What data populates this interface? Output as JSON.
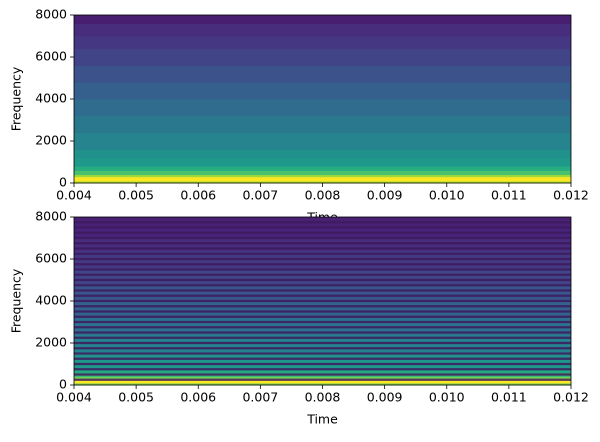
{
  "chart_data": [
    {
      "type": "spectrogram",
      "xlabel": "Time",
      "ylabel": "Frequency",
      "xlim": [
        0.004,
        0.012
      ],
      "xticks": [
        {
          "value": 0.004,
          "label": "0.004"
        },
        {
          "value": 0.005,
          "label": "0.005"
        },
        {
          "value": 0.006,
          "label": "0.006"
        },
        {
          "value": 0.007,
          "label": "0.007"
        },
        {
          "value": 0.008,
          "label": "0.008"
        },
        {
          "value": 0.009,
          "label": "0.009"
        },
        {
          "value": 0.01,
          "label": "0.010"
        },
        {
          "value": 0.011,
          "label": "0.011"
        },
        {
          "value": 0.012,
          "label": "0.012"
        }
      ],
      "ylim": [
        0,
        8000
      ],
      "yticks": [
        0,
        2000,
        4000,
        6000,
        8000
      ],
      "bins": [
        0,
        100,
        300,
        400,
        600,
        800,
        1200,
        1600,
        2400,
        3200,
        4000,
        4800,
        5600,
        6400,
        7000,
        7600,
        8000
      ],
      "colors": [
        "#b5de2b",
        "#fde725",
        "#a0da39",
        "#4ac16d",
        "#27ad81",
        "#1f9a8a",
        "#21918c",
        "#25848e",
        "#2a788e",
        "#2f6c8e",
        "#355f8d",
        "#3b528b",
        "#414487",
        "#453781",
        "#472d7b",
        "#481f70"
      ]
    },
    {
      "type": "spectrogram",
      "xlabel": "Time",
      "ylabel": "Frequency",
      "xlim": [
        0.004,
        0.012
      ],
      "xticks": [
        {
          "value": 0.004,
          "label": "0.004"
        },
        {
          "value": 0.005,
          "label": "0.005"
        },
        {
          "value": 0.006,
          "label": "0.006"
        },
        {
          "value": 0.007,
          "label": "0.007"
        },
        {
          "value": 0.008,
          "label": "0.008"
        },
        {
          "value": 0.009,
          "label": "0.009"
        },
        {
          "value": 0.01,
          "label": "0.010"
        },
        {
          "value": 0.011,
          "label": "0.011"
        },
        {
          "value": 0.012,
          "label": "0.012"
        }
      ],
      "ylim": [
        0,
        8000
      ],
      "yticks": [
        0,
        2000,
        4000,
        6000,
        8000
      ],
      "bins": [
        0,
        100,
        300,
        400,
        600,
        800,
        1200,
        1600,
        2400,
        3200,
        4000,
        4800,
        5600,
        6400,
        7000,
        7600,
        8000
      ],
      "colors": [
        "#7ad151",
        "#fde725",
        "#7ad151",
        "#3bbb75",
        "#22a884",
        "#1f988b",
        "#21918c",
        "#26828e",
        "#2c728e",
        "#33638d",
        "#39568c",
        "#404688",
        "#443983",
        "#472d7b",
        "#48237a",
        "#482173"
      ],
      "harmonics": [
        250,
        500,
        750,
        1000,
        1250,
        1500,
        1750,
        2000,
        2250,
        2500,
        2750,
        3000,
        3250,
        3500,
        3750,
        4000,
        4250,
        4500,
        4750,
        5000,
        5250,
        5500,
        5750,
        6000,
        6250,
        6500,
        6750,
        7000,
        7250,
        7500,
        7750
      ],
      "harmonic_color": "#3e1a5e"
    }
  ]
}
